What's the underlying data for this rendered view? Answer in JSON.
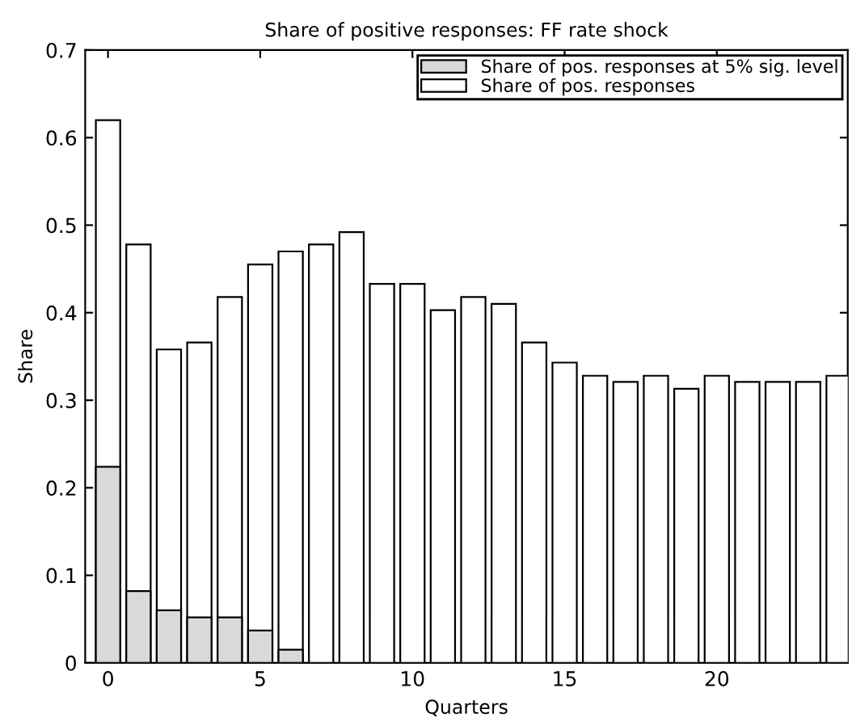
{
  "chart_data": {
    "type": "bar",
    "title": "Share of positive responses: FF rate shock",
    "xlabel": "Quarters",
    "ylabel": "Share",
    "x": [
      0,
      1,
      2,
      3,
      4,
      5,
      6,
      7,
      8,
      9,
      10,
      11,
      12,
      13,
      14,
      15,
      16,
      17,
      18,
      19,
      20,
      21,
      22,
      23,
      24
    ],
    "series": [
      {
        "name": "Share of pos. responses at 5% sig. level",
        "color": "#d9d9d9",
        "values": [
          0.224,
          0.082,
          0.06,
          0.052,
          0.052,
          0.037,
          0.015,
          null,
          null,
          null,
          null,
          null,
          null,
          null,
          null,
          null,
          null,
          null,
          null,
          null,
          null,
          null,
          null,
          null,
          null
        ]
      },
      {
        "name": "Share of pos. responses",
        "color": "#ffffff",
        "values": [
          0.62,
          0.478,
          0.358,
          0.366,
          0.418,
          0.455,
          0.47,
          0.478,
          0.492,
          0.433,
          0.433,
          0.403,
          0.418,
          0.41,
          0.366,
          0.343,
          0.328,
          0.321,
          0.328,
          0.313,
          0.328,
          0.321,
          0.321,
          0.321,
          0.328
        ]
      }
    ],
    "xlim": [
      -0.75,
      24.3
    ],
    "xticks": [
      0,
      5,
      10,
      15,
      20
    ],
    "ylim": [
      0,
      0.7
    ],
    "yticks": [
      0,
      0.1,
      0.2,
      0.3,
      0.4,
      0.5,
      0.6,
      0.7
    ],
    "grid": false,
    "legend": "top right"
  }
}
